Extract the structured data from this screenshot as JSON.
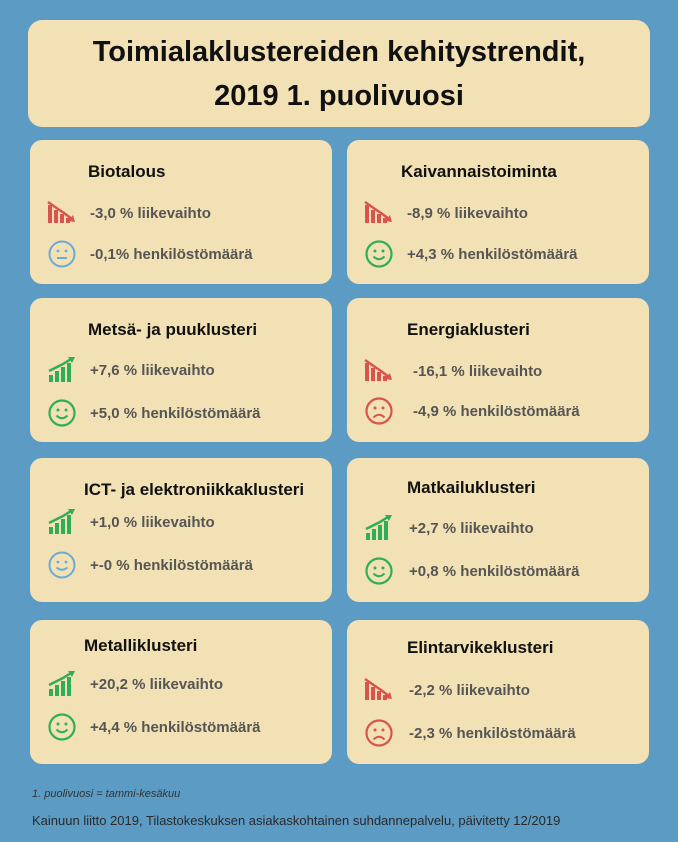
{
  "title": {
    "line1": "Toimialaklustereiden kehitystrendit,",
    "line2": "2019 1. puolivuosi"
  },
  "clusters": [
    {
      "name": "Biotalous",
      "turnover": "-3,0 % liikevaihto",
      "turnover_icon": "trend-down-icon",
      "employees": "-0,1% henkilöstömäärä",
      "employees_icon": "neutral-face-icon"
    },
    {
      "name": "Kaivannaistoiminta",
      "turnover": "-8,9 % liikevaihto",
      "turnover_icon": "trend-down-icon",
      "employees": "+4,3 % henkilöstömäärä",
      "employees_icon": "happy-face-icon"
    },
    {
      "name": "Metsä- ja puuklusteri",
      "turnover": "+7,6 % liikevaihto",
      "turnover_icon": "trend-up-icon",
      "employees": "+5,0 % henkilöstömäärä",
      "employees_icon": "happy-face-icon"
    },
    {
      "name": "Energiaklusteri",
      "turnover": "-16,1 % liikevaihto",
      "turnover_icon": "trend-down-icon",
      "employees": "-4,9 % henkilöstömäärä",
      "employees_icon": "sad-face-icon"
    },
    {
      "name": "ICT- ja elektroniikkaklusteri",
      "turnover": "+1,0 % liikevaihto",
      "turnover_icon": "trend-up-icon",
      "employees": "+-0 % henkilöstömäärä",
      "employees_icon": "happy-face-blue-icon"
    },
    {
      "name": "Matkailuklusteri",
      "turnover": "+2,7 % liikevaihto",
      "turnover_icon": "trend-up-icon",
      "employees": "+0,8 % henkilöstömäärä",
      "employees_icon": "happy-face-icon"
    },
    {
      "name": "Metalliklusteri",
      "turnover": "+20,2 % liikevaihto",
      "turnover_icon": "trend-up-icon",
      "employees": "+4,4 % henkilöstömäärä",
      "employees_icon": "happy-face-icon"
    },
    {
      "name": "Elintarvikeklusteri",
      "turnover": "-2,2 % liikevaihto",
      "turnover_icon": "trend-down-icon",
      "employees": "-2,3 % henkilöstömäärä",
      "employees_icon": "sad-face-icon"
    }
  ],
  "footnote": "1. puolivuosi = tammi-kesäkuu",
  "source": "Kainuun liitto 2019, Tilastokeskuksen asiakaskohtainen suhdannepalvelu, päivitetty 12/2019",
  "colors": {
    "background": "#5b9bc4",
    "card": "#f2e1b4",
    "up": "#2fae5a",
    "down": "#d9534f",
    "neutral": "#6aaad8"
  }
}
